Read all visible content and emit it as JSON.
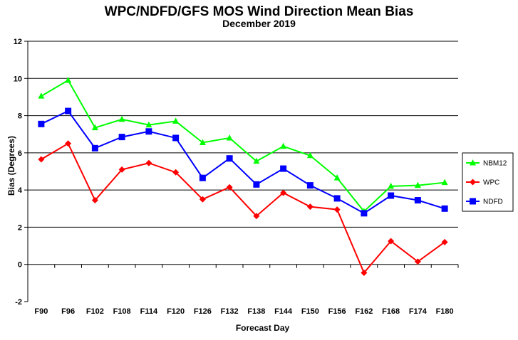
{
  "chart_data": {
    "type": "line",
    "title": "WPC/NDFD/GFS MOS Wind Direction Mean Bias",
    "subtitle": "December 2019",
    "xlabel": "Forecast Day",
    "ylabel": "Bias (Degrees)",
    "categories": [
      "F90",
      "F96",
      "F102",
      "F108",
      "F114",
      "F120",
      "F126",
      "F132",
      "F138",
      "F144",
      "F150",
      "F156",
      "F162",
      "F168",
      "F174",
      "F180"
    ],
    "ylim": [
      -2,
      12
    ],
    "yticks": [
      -2,
      0,
      2,
      4,
      6,
      8,
      10,
      12
    ],
    "grid": true,
    "legend_position": "right",
    "series": [
      {
        "name": "NBM12",
        "color": "#00ff00",
        "marker": "triangle",
        "values": [
          9.05,
          9.9,
          7.35,
          7.8,
          7.5,
          7.7,
          6.55,
          6.8,
          5.55,
          6.35,
          5.85,
          4.65,
          2.85,
          4.2,
          4.25,
          4.4
        ]
      },
      {
        "name": "WPC",
        "color": "#ff0000",
        "marker": "diamond",
        "values": [
          5.65,
          6.5,
          3.45,
          5.1,
          5.45,
          4.95,
          3.5,
          4.15,
          2.6,
          3.85,
          3.1,
          2.95,
          -0.45,
          1.25,
          0.15,
          1.2
        ]
      },
      {
        "name": "NDFD",
        "color": "#0000ff",
        "marker": "square",
        "values": [
          7.55,
          8.25,
          6.25,
          6.85,
          7.15,
          6.8,
          4.65,
          5.7,
          4.3,
          5.15,
          4.25,
          3.55,
          2.75,
          3.7,
          3.45,
          3.0
        ]
      }
    ]
  }
}
